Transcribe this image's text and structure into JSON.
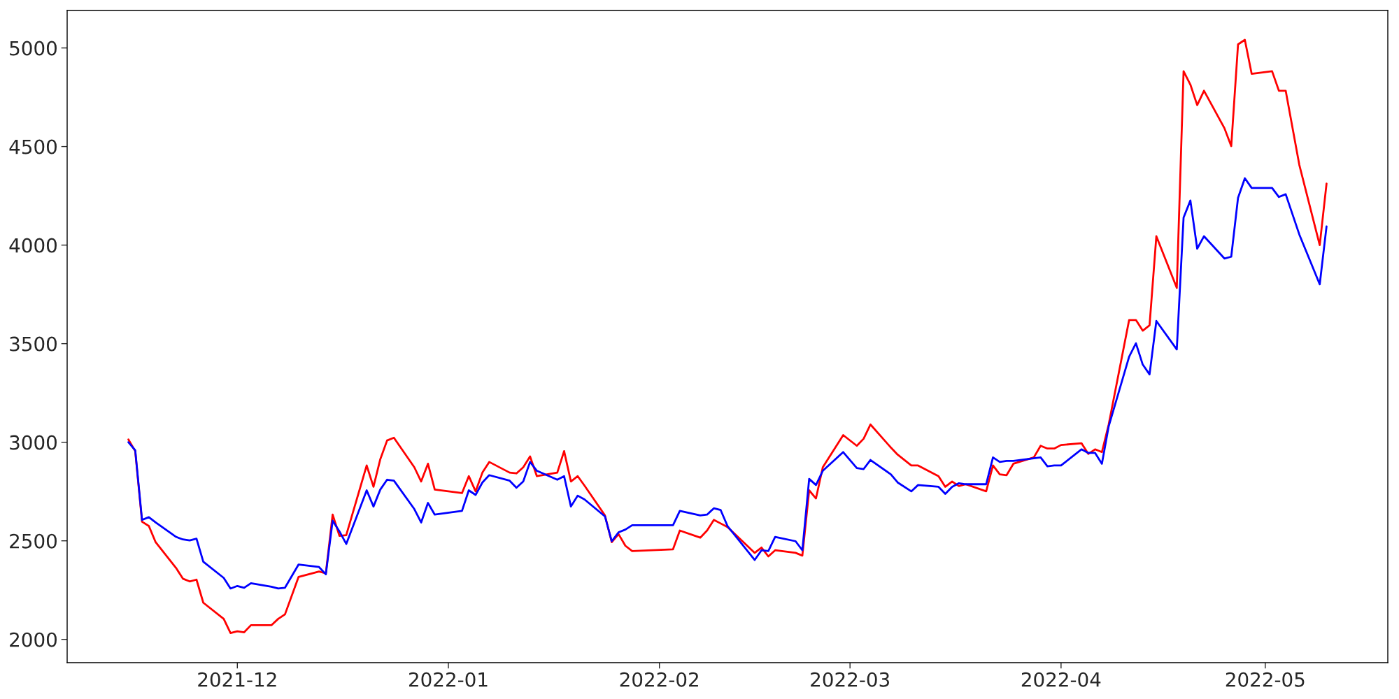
{
  "chart_data": {
    "type": "line",
    "x": [
      "2021-11-15",
      "2021-11-16",
      "2021-11-17",
      "2021-11-18",
      "2021-11-19",
      "2021-11-22",
      "2021-11-23",
      "2021-11-24",
      "2021-11-25",
      "2021-11-26",
      "2021-11-29",
      "2021-11-30",
      "2021-12-01",
      "2021-12-02",
      "2021-12-03",
      "2021-12-06",
      "2021-12-07",
      "2021-12-08",
      "2021-12-10",
      "2021-12-13",
      "2021-12-14",
      "2021-12-15",
      "2021-12-16",
      "2021-12-17",
      "2021-12-20",
      "2021-12-21",
      "2021-12-22",
      "2021-12-23",
      "2021-12-24",
      "2021-12-27",
      "2021-12-28",
      "2021-12-29",
      "2021-12-30",
      "2022-01-03",
      "2022-01-04",
      "2022-01-05",
      "2022-01-06",
      "2022-01-07",
      "2022-01-10",
      "2022-01-11",
      "2022-01-12",
      "2022-01-13",
      "2022-01-14",
      "2022-01-17",
      "2022-01-18",
      "2022-01-19",
      "2022-01-20",
      "2022-01-21",
      "2022-01-24",
      "2022-01-25",
      "2022-01-26",
      "2022-01-27",
      "2022-01-28",
      "2022-02-03",
      "2022-02-04",
      "2022-02-07",
      "2022-02-08",
      "2022-02-09",
      "2022-02-10",
      "2022-02-11",
      "2022-02-15",
      "2022-02-16",
      "2022-02-17",
      "2022-02-18",
      "2022-02-21",
      "2022-02-22",
      "2022-02-23",
      "2022-02-24",
      "2022-02-25",
      "2022-02-28",
      "2022-03-02",
      "2022-03-03",
      "2022-03-04",
      "2022-03-07",
      "2022-03-08",
      "2022-03-10",
      "2022-03-11",
      "2022-03-14",
      "2022-03-15",
      "2022-03-16",
      "2022-03-17",
      "2022-03-18",
      "2022-03-21",
      "2022-03-22",
      "2022-03-23",
      "2022-03-24",
      "2022-03-25",
      "2022-03-28",
      "2022-03-29",
      "2022-03-30",
      "2022-03-31",
      "2022-04-01",
      "2022-04-04",
      "2022-04-05",
      "2022-04-06",
      "2022-04-07",
      "2022-04-08",
      "2022-04-11",
      "2022-04-12",
      "2022-04-13",
      "2022-04-14",
      "2022-04-15",
      "2022-04-18",
      "2022-04-19",
      "2022-04-20",
      "2022-04-21",
      "2022-04-22",
      "2022-04-25",
      "2022-04-26",
      "2022-04-27",
      "2022-04-28",
      "2022-04-29",
      "2022-05-02",
      "2022-05-03",
      "2022-05-04",
      "2022-05-06",
      "2022-05-09",
      "2022-05-10"
    ],
    "series": [
      {
        "color": "#ff0000",
        "values": [
          3014,
          2955,
          2597,
          2575,
          2493,
          2362,
          2308,
          2294,
          2303,
          2186,
          2104,
          2032,
          2041,
          2036,
          2072,
          2072,
          2104,
          2127,
          2317,
          2344,
          2335,
          2633,
          2525,
          2529,
          2882,
          2774,
          2914,
          3009,
          3023,
          2873,
          2801,
          2891,
          2760,
          2742,
          2828,
          2751,
          2846,
          2900,
          2846,
          2842,
          2873,
          2928,
          2828,
          2846,
          2955,
          2801,
          2828,
          2780,
          2629,
          2493,
          2534,
          2475,
          2448,
          2457,
          2552,
          2516,
          2552,
          2606,
          2588,
          2570,
          2439,
          2466,
          2421,
          2452,
          2439,
          2425,
          2756,
          2715,
          2873,
          3036,
          2982,
          3018,
          3090,
          2973,
          2937,
          2882,
          2882,
          2828,
          2774,
          2801,
          2778,
          2787,
          2751,
          2882,
          2837,
          2833,
          2891,
          2923,
          2982,
          2968,
          2968,
          2986,
          2995,
          2941,
          2964,
          2950,
          3090,
          3620,
          3620,
          3566,
          3593,
          4045,
          3783,
          4882,
          4814,
          4710,
          4783,
          4593,
          4502,
          5018,
          5041,
          4869,
          4882,
          4783,
          4783,
          4407,
          4000,
          4312
        ]
      },
      {
        "color": "#0000ff",
        "values": [
          3000,
          2959,
          2606,
          2620,
          2593,
          2520,
          2507,
          2502,
          2511,
          2394,
          2312,
          2258,
          2271,
          2262,
          2285,
          2267,
          2258,
          2262,
          2380,
          2367,
          2330,
          2602,
          2548,
          2484,
          2756,
          2674,
          2760,
          2810,
          2805,
          2661,
          2593,
          2692,
          2633,
          2652,
          2756,
          2733,
          2796,
          2833,
          2805,
          2769,
          2801,
          2900,
          2855,
          2810,
          2828,
          2674,
          2729,
          2710,
          2624,
          2498,
          2543,
          2557,
          2579,
          2579,
          2652,
          2629,
          2633,
          2665,
          2656,
          2575,
          2403,
          2452,
          2448,
          2520,
          2498,
          2452,
          2814,
          2783,
          2855,
          2950,
          2869,
          2864,
          2910,
          2837,
          2796,
          2751,
          2783,
          2774,
          2738,
          2774,
          2792,
          2787,
          2787,
          2923,
          2900,
          2905,
          2905,
          2919,
          2923,
          2878,
          2882,
          2882,
          2964,
          2946,
          2946,
          2891,
          3081,
          3434,
          3502,
          3394,
          3344,
          3615,
          3471,
          4140,
          4226,
          3982,
          4045,
          3932,
          3941,
          4240,
          4339,
          4290,
          4290,
          4244,
          4258,
          4054,
          3801,
          4095
        ]
      }
    ],
    "xlim": [
      "2021-11-06",
      "2022-05-19"
    ],
    "xticks": [
      {
        "value": "2021-12-01",
        "label": "2021-12"
      },
      {
        "value": "2022-01-01",
        "label": "2022-01"
      },
      {
        "value": "2022-02-01",
        "label": "2022-02"
      },
      {
        "value": "2022-03-01",
        "label": "2022-03"
      },
      {
        "value": "2022-04-01",
        "label": "2022-04"
      },
      {
        "value": "2022-05-01",
        "label": "2022-05"
      }
    ],
    "ylim": [
      1882,
      5190
    ],
    "yticks": [
      2000,
      2500,
      3000,
      3500,
      4000,
      4500,
      5000
    ],
    "grid": false,
    "marker": "none",
    "line_style": "solid"
  }
}
